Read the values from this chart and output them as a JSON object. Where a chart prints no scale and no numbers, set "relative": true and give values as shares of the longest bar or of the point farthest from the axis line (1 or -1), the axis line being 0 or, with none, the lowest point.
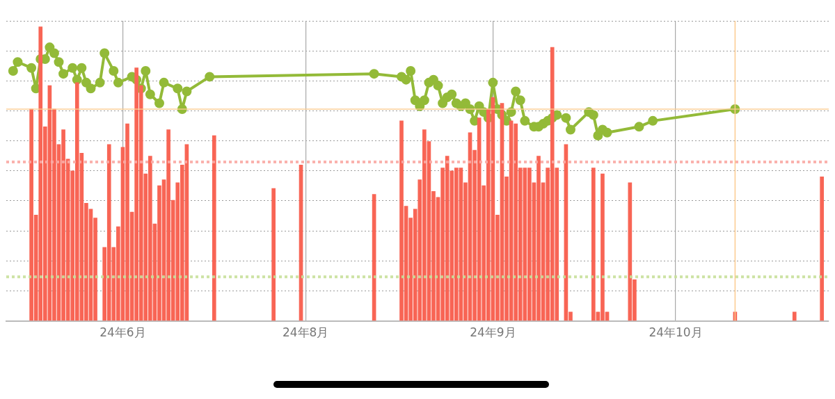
{
  "chart_data": {
    "type": "bar",
    "relative": true,
    "grid": true,
    "marker": "circle",
    "categories": [
      null,
      null,
      null,
      null,
      null,
      null,
      null,
      null,
      null,
      null,
      null,
      null,
      null,
      null,
      null,
      null,
      null,
      null,
      null,
      null,
      null,
      null,
      null,
      null,
      null,
      "24年6月",
      null,
      null,
      null,
      null,
      null,
      null,
      null,
      null,
      null,
      null,
      null,
      null,
      null,
      null,
      null,
      null,
      null,
      null,
      null,
      null,
      null,
      null,
      null,
      null,
      null,
      null,
      null,
      null,
      null,
      null,
      null,
      null,
      null,
      null,
      null,
      null,
      null,
      null,
      null,
      "24年8月",
      null,
      null,
      null,
      null,
      null,
      null,
      null,
      null,
      null,
      null,
      null,
      null,
      null,
      null,
      null,
      null,
      null,
      null,
      null,
      null,
      null,
      null,
      null,
      null,
      null,
      null,
      null,
      null,
      null,
      null,
      null,
      null,
      null,
      null,
      null,
      null,
      null,
      null,
      null,
      null,
      "24年9月",
      null,
      null,
      null,
      null,
      null,
      null,
      null,
      null,
      null,
      null,
      null,
      null,
      null,
      null,
      null,
      null,
      null,
      null,
      null,
      null,
      null,
      null,
      null,
      null,
      null,
      null,
      null,
      null,
      null,
      null,
      null,
      null,
      null,
      null,
      null,
      null,
      null,
      null,
      null,
      "24年10月",
      null,
      null,
      null,
      null,
      null,
      null,
      null,
      null,
      null,
      null,
      null,
      null,
      null,
      null,
      null,
      null,
      null,
      null,
      null,
      null,
      null,
      null,
      null,
      null,
      null,
      null,
      null,
      null,
      null,
      null,
      null,
      null,
      null
    ],
    "series": [
      {
        "color": "#f86555",
        "values": [
          null,
          null,
          null,
          null,
          null,
          0.72,
          0.36,
          1,
          0.66,
          0.8,
          0.72,
          0.6,
          0.65,
          0.55,
          0.51,
          0.81,
          0.57,
          0.4,
          0.38,
          0.35,
          null,
          0.25,
          0.6,
          0.25,
          0.32,
          0.59,
          0.67,
          0.37,
          0.86,
          0.8,
          0.5,
          0.56,
          0.33,
          0.46,
          0.48,
          0.65,
          0.41,
          0.47,
          0.53,
          0.6,
          null,
          null,
          null,
          null,
          null,
          0.63,
          null,
          null,
          null,
          null,
          null,
          null,
          null,
          null,
          null,
          null,
          null,
          null,
          0.45,
          null,
          null,
          null,
          null,
          null,
          0.53,
          null,
          null,
          null,
          null,
          null,
          null,
          null,
          null,
          null,
          null,
          null,
          null,
          null,
          null,
          null,
          0.43,
          null,
          null,
          null,
          null,
          null,
          0.68,
          0.39,
          0.35,
          0.38,
          0.48,
          0.65,
          0.61,
          0.44,
          0.42,
          0.52,
          0.56,
          0.51,
          0.52,
          0.52,
          0.47,
          0.64,
          0.58,
          0.69,
          0.46,
          0.72,
          0.76,
          0.36,
          0.74,
          0.49,
          0.68,
          0.67,
          0.52,
          0.52,
          0.52,
          0.47,
          0.56,
          0.47,
          0.52,
          0.93,
          0.52,
          null,
          0.6,
          0.03,
          null,
          null,
          null,
          null,
          0.52,
          0.03,
          0.5,
          0.03,
          null,
          null,
          null,
          null,
          0.47,
          0.14,
          null,
          null,
          null,
          null,
          null,
          null,
          null,
          null,
          null,
          null,
          null,
          null,
          null,
          null,
          null,
          null,
          null,
          null,
          null,
          null,
          null,
          0.03,
          null,
          null,
          null,
          null,
          null,
          null,
          null,
          null,
          null,
          null,
          null,
          null,
          0.03,
          null,
          null,
          null,
          null,
          null,
          0.49,
          null
        ]
      },
      {
        "type": "line",
        "color": "#93ba38",
        "values": [
          null,
          0.85,
          0.88,
          null,
          null,
          0.86,
          0.79,
          0.89,
          0.89,
          0.93,
          0.91,
          0.88,
          0.84,
          null,
          0.86,
          0.82,
          0.86,
          0.81,
          0.79,
          null,
          0.81,
          0.91,
          null,
          0.85,
          0.81,
          null,
          null,
          0.83,
          0.82,
          0.79,
          0.85,
          0.77,
          null,
          0.74,
          0.81,
          null,
          null,
          0.79,
          0.72,
          0.78,
          null,
          null,
          null,
          null,
          0.83,
          null,
          null,
          null,
          null,
          null,
          null,
          null,
          null,
          null,
          null,
          null,
          null,
          null,
          null,
          null,
          null,
          null,
          null,
          null,
          null,
          null,
          null,
          null,
          null,
          null,
          null,
          null,
          null,
          null,
          null,
          null,
          null,
          null,
          null,
          null,
          0.84,
          null,
          null,
          null,
          null,
          null,
          0.83,
          0.82,
          0.85,
          0.75,
          0.73,
          0.75,
          0.81,
          0.82,
          0.8,
          0.74,
          0.76,
          0.77,
          0.74,
          0.73,
          0.74,
          0.72,
          0.68,
          0.73,
          0.71,
          0.69,
          0.81,
          0.72,
          0.7,
          0.68,
          0.71,
          0.78,
          0.75,
          0.68,
          null,
          0.66,
          0.66,
          0.67,
          0.68,
          0.69,
          0.7,
          null,
          0.69,
          0.65,
          null,
          null,
          null,
          0.71,
          0.7,
          0.63,
          0.65,
          0.64,
          null,
          null,
          null,
          null,
          null,
          null,
          0.66,
          null,
          null,
          0.68,
          null,
          null,
          null,
          null,
          null,
          null,
          null,
          null,
          null,
          null,
          null,
          null,
          null,
          null,
          null,
          null,
          null,
          0.72,
          null,
          null,
          null,
          null,
          null,
          null,
          null,
          null,
          null,
          null,
          null,
          null,
          null,
          null,
          null,
          null,
          null,
          null,
          null,
          null
        ]
      }
    ],
    "ref_lines": [
      {
        "axis": "y",
        "value": 0.72,
        "color": "#fccb8f",
        "line_style": "solid"
      },
      {
        "axis": "y",
        "value": 0.54,
        "color": "#f9aaa4",
        "line_style": "dotted"
      },
      {
        "axis": "y",
        "value": 0.15,
        "color": "#c8e09a",
        "line_style": "dotted"
      }
    ]
  }
}
